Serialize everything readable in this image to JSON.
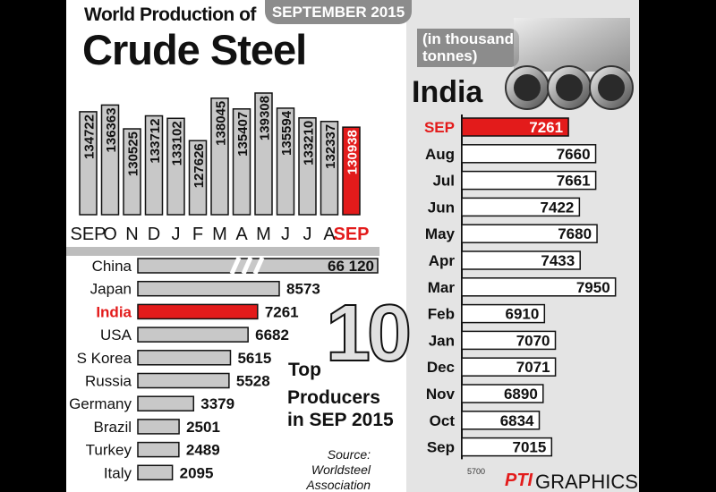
{
  "header": {
    "title_small": "World Production of",
    "title_big": "Crude Steel",
    "month_badge": "SEPTEMBER 2015",
    "unit_label_line1": "(in thousand",
    "unit_label_line2": "tonnes)"
  },
  "colors": {
    "highlight": "#e31b1b",
    "bar_gray": "#c8c8c8",
    "dark": "#111111"
  },
  "top_label": {
    "top": "Top",
    "ten": "10",
    "producers": "Producers",
    "period": "in SEP 2015"
  },
  "source": {
    "line1": "Source:",
    "line2": "Worldsteel Association"
  },
  "right_axis_min": "5700",
  "logo": {
    "mark": "PTI",
    "text": "GRAPHICS"
  },
  "chart_data": [
    {
      "type": "bar",
      "title": "World Production of Crude Steel",
      "categories": [
        "SEP",
        "O",
        "N",
        "D",
        "J",
        "F",
        "M",
        "A",
        "M",
        "J",
        "J",
        "A",
        "SEP"
      ],
      "values": [
        134722,
        136363,
        130525,
        133712,
        133102,
        127626,
        138045,
        135407,
        139308,
        135594,
        133210,
        132337,
        130938
      ],
      "highlight_index": 12
    },
    {
      "type": "bar",
      "orientation": "horizontal",
      "title": "Top 10 Producers in SEP 2015",
      "categories": [
        "China",
        "Japan",
        "India",
        "USA",
        "S Korea",
        "Russia",
        "Germany",
        "Brazil",
        "Turkey",
        "Italy"
      ],
      "values": [
        66120,
        8573,
        7261,
        6682,
        5615,
        5528,
        3379,
        2501,
        2489,
        2095
      ],
      "value_labels": [
        "66 120",
        "8573",
        "7261",
        "6682",
        "5615",
        "5528",
        "3379",
        "2501",
        "2489",
        "2095"
      ],
      "axis_break_on": "China",
      "highlight": "India"
    },
    {
      "type": "bar",
      "orientation": "horizontal",
      "title": "India",
      "categories": [
        "SEP",
        "Aug",
        "Jul",
        "Jun",
        "May",
        "Apr",
        "Mar",
        "Feb",
        "Jan",
        "Dec",
        "Nov",
        "Oct",
        "Sep"
      ],
      "values": [
        7261,
        7660,
        7661,
        7422,
        7680,
        7433,
        7950,
        6910,
        7070,
        7071,
        6890,
        6834,
        7015
      ],
      "xmin": 5700,
      "highlight_index": 0
    }
  ]
}
